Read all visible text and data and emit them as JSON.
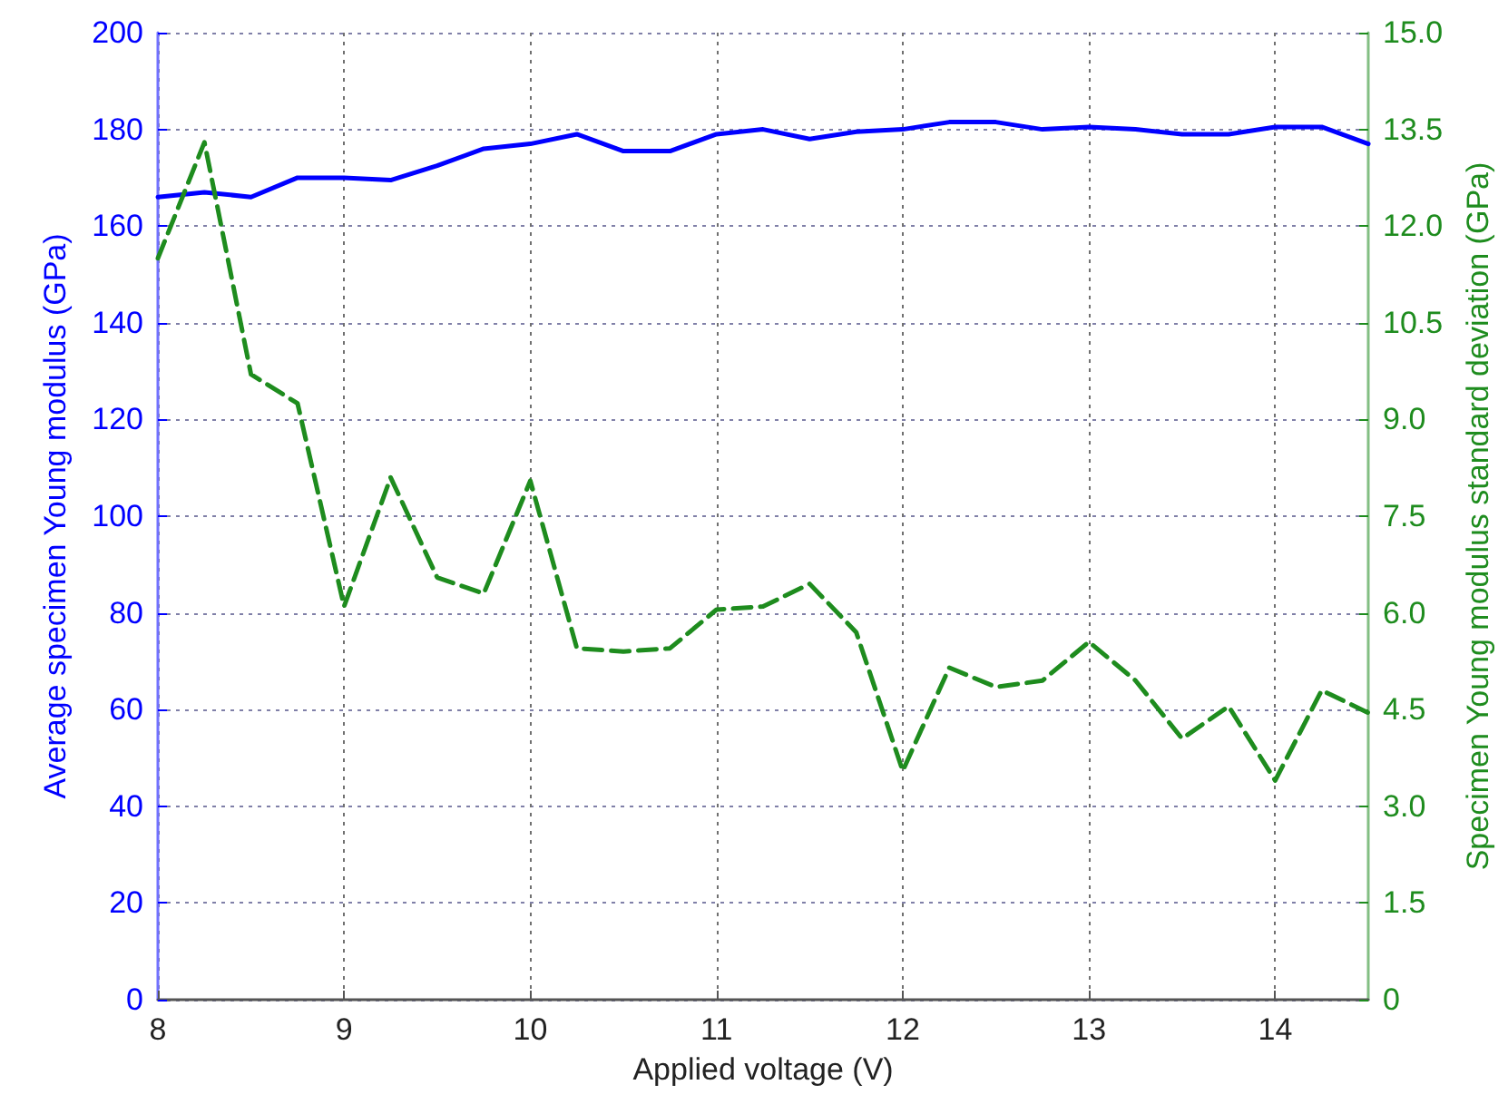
{
  "chart_data": {
    "type": "line",
    "xlabel": "Applied voltage (V)",
    "ylabel": "Average specimen Young modulus (GPa)",
    "y2label": "Specimen Young modulus standard deviation (GPa)",
    "x": [
      8,
      8.25,
      8.5,
      8.75,
      9,
      9.25,
      9.5,
      9.75,
      10,
      10.25,
      10.5,
      10.75,
      11,
      11.25,
      11.5,
      11.75,
      12,
      12.25,
      12.5,
      12.75,
      13,
      13.25,
      13.5,
      13.75,
      14,
      14.25,
      14.5
    ],
    "series": [
      {
        "color": "#0000ff",
        "line_style": "solid",
        "values": [
          166,
          167,
          166,
          170,
          170,
          169.5,
          172.5,
          176,
          177,
          179,
          175.5,
          175.5,
          179,
          180,
          178,
          179.5,
          180,
          181.5,
          181.5,
          180,
          180.5,
          180,
          179,
          179,
          180.5,
          180.5,
          177
        ]
      },
      {
        "color": "#1e8c1e",
        "line_style": "dashed",
        "axis": "y2",
        "values": [
          11.5,
          13.3,
          9.7,
          9.25,
          6.1,
          8.1,
          6.55,
          6.3,
          8.05,
          5.45,
          5.4,
          5.45,
          6.05,
          6.1,
          6.45,
          5.7,
          3.55,
          5.15,
          4.85,
          4.95,
          5.55,
          4.95,
          4.05,
          4.55,
          3.4,
          4.8,
          4.45
        ]
      }
    ],
    "xlim": [
      8,
      14.5
    ],
    "xticks": [
      8,
      9,
      10,
      11,
      12,
      13,
      14
    ],
    "ylim": [
      0,
      200
    ],
    "yticks": [
      0,
      20,
      40,
      60,
      80,
      100,
      120,
      140,
      160,
      180,
      200
    ],
    "y2lim": [
      0,
      15
    ],
    "y2ticks": [
      0,
      1.5,
      {
        "value": 3,
        "label": "3.0"
      },
      4.5,
      {
        "value": 6,
        "label": "6.0"
      },
      7.5,
      {
        "value": 9,
        "label": "9.0"
      },
      10.5,
      {
        "value": 12,
        "label": "12.0"
      },
      13.5,
      {
        "value": 15,
        "label": "15.0"
      }
    ],
    "grid": true,
    "marker": "none"
  }
}
